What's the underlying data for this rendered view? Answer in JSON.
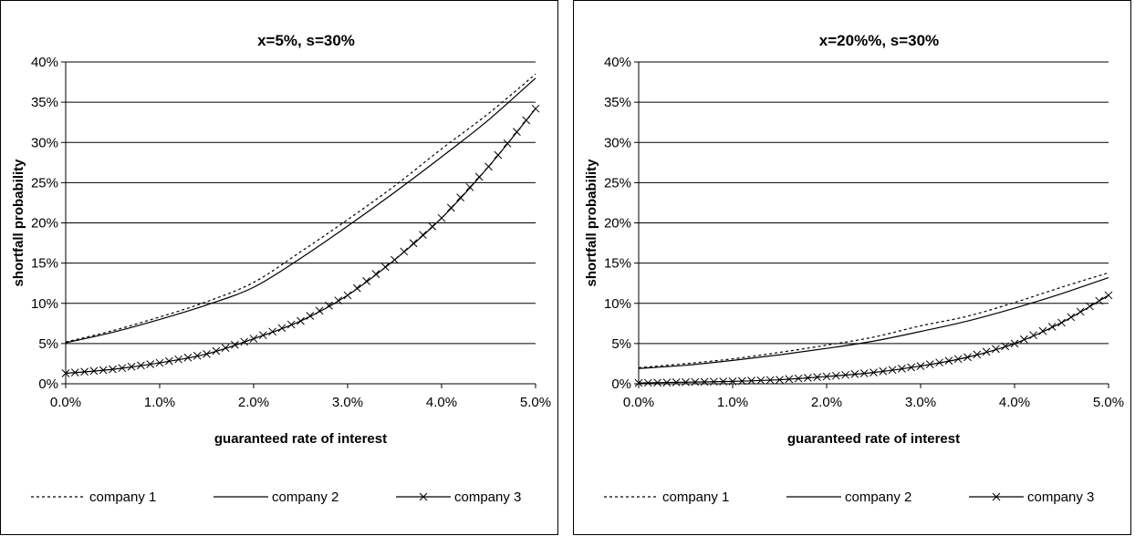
{
  "chart_data": [
    {
      "type": "line",
      "title": "x=5%, s=30%",
      "xlabel": "guaranteed rate of interest",
      "ylabel": "shortfall probability",
      "xlim": [
        0,
        5
      ],
      "ylim": [
        0,
        40
      ],
      "x_ticks": [
        "0.0%",
        "1.0%",
        "2.0%",
        "3.0%",
        "4.0%",
        "5.0%"
      ],
      "y_ticks": [
        "0%",
        "5%",
        "10%",
        "15%",
        "20%",
        "25%",
        "30%",
        "35%",
        "40%"
      ],
      "grid": "horizontal",
      "legend": "bottom",
      "series": [
        {
          "name": "company 1",
          "style": "dotted",
          "x": [
            0,
            0.5,
            1,
            1.5,
            2,
            2.5,
            3,
            3.5,
            4,
            4.5,
            5
          ],
          "y": [
            5.2,
            6.6,
            8.3,
            10.2,
            12.6,
            16.4,
            20.4,
            24.6,
            29.2,
            33.6,
            38.5
          ]
        },
        {
          "name": "company 2",
          "style": "solid",
          "x": [
            0,
            0.5,
            1,
            1.5,
            2,
            2.5,
            3,
            3.5,
            4,
            4.5,
            5
          ],
          "y": [
            5.1,
            6.4,
            8.0,
            9.8,
            12.0,
            15.6,
            19.6,
            23.8,
            28.2,
            32.8,
            38.0
          ]
        },
        {
          "name": "company 3",
          "style": "x-markers",
          "x": [
            0,
            0.5,
            1,
            1.5,
            2,
            2.5,
            3,
            3.5,
            4,
            4.5,
            5
          ],
          "y": [
            1.3,
            1.8,
            2.6,
            3.7,
            5.6,
            7.8,
            11.0,
            15.4,
            20.6,
            27.0,
            34.2
          ]
        }
      ]
    },
    {
      "type": "line",
      "title": "x=20%%, s=30%",
      "xlabel": "guaranteed rate of interest",
      "ylabel": "shortfall probability",
      "xlim": [
        0,
        5
      ],
      "ylim": [
        0,
        40
      ],
      "x_ticks": [
        "0.0%",
        "1.0%",
        "2.0%",
        "3.0%",
        "4.0%",
        "5.0%"
      ],
      "y_ticks": [
        "0%",
        "5%",
        "10%",
        "15%",
        "20%",
        "25%",
        "30%",
        "35%",
        "40%"
      ],
      "grid": "horizontal",
      "legend": "bottom",
      "series": [
        {
          "name": "company 1",
          "style": "dotted",
          "x": [
            0,
            0.5,
            1,
            1.5,
            2,
            2.5,
            3,
            3.5,
            4,
            4.5,
            5
          ],
          "y": [
            2.0,
            2.5,
            3.1,
            3.9,
            4.8,
            5.8,
            7.2,
            8.4,
            10.1,
            12.0,
            13.8
          ]
        },
        {
          "name": "company 2",
          "style": "solid",
          "x": [
            0,
            0.5,
            1,
            1.5,
            2,
            2.5,
            3,
            3.5,
            4,
            4.5,
            5
          ],
          "y": [
            1.9,
            2.3,
            2.9,
            3.6,
            4.4,
            5.3,
            6.5,
            7.8,
            9.4,
            11.2,
            13.2
          ]
        },
        {
          "name": "company 3",
          "style": "x-markers",
          "x": [
            0,
            0.5,
            1,
            1.5,
            2,
            2.5,
            3,
            3.5,
            4,
            4.5,
            5
          ],
          "y": [
            0.1,
            0.2,
            0.3,
            0.5,
            0.9,
            1.4,
            2.2,
            3.3,
            5.0,
            7.6,
            11.0
          ]
        }
      ]
    }
  ]
}
